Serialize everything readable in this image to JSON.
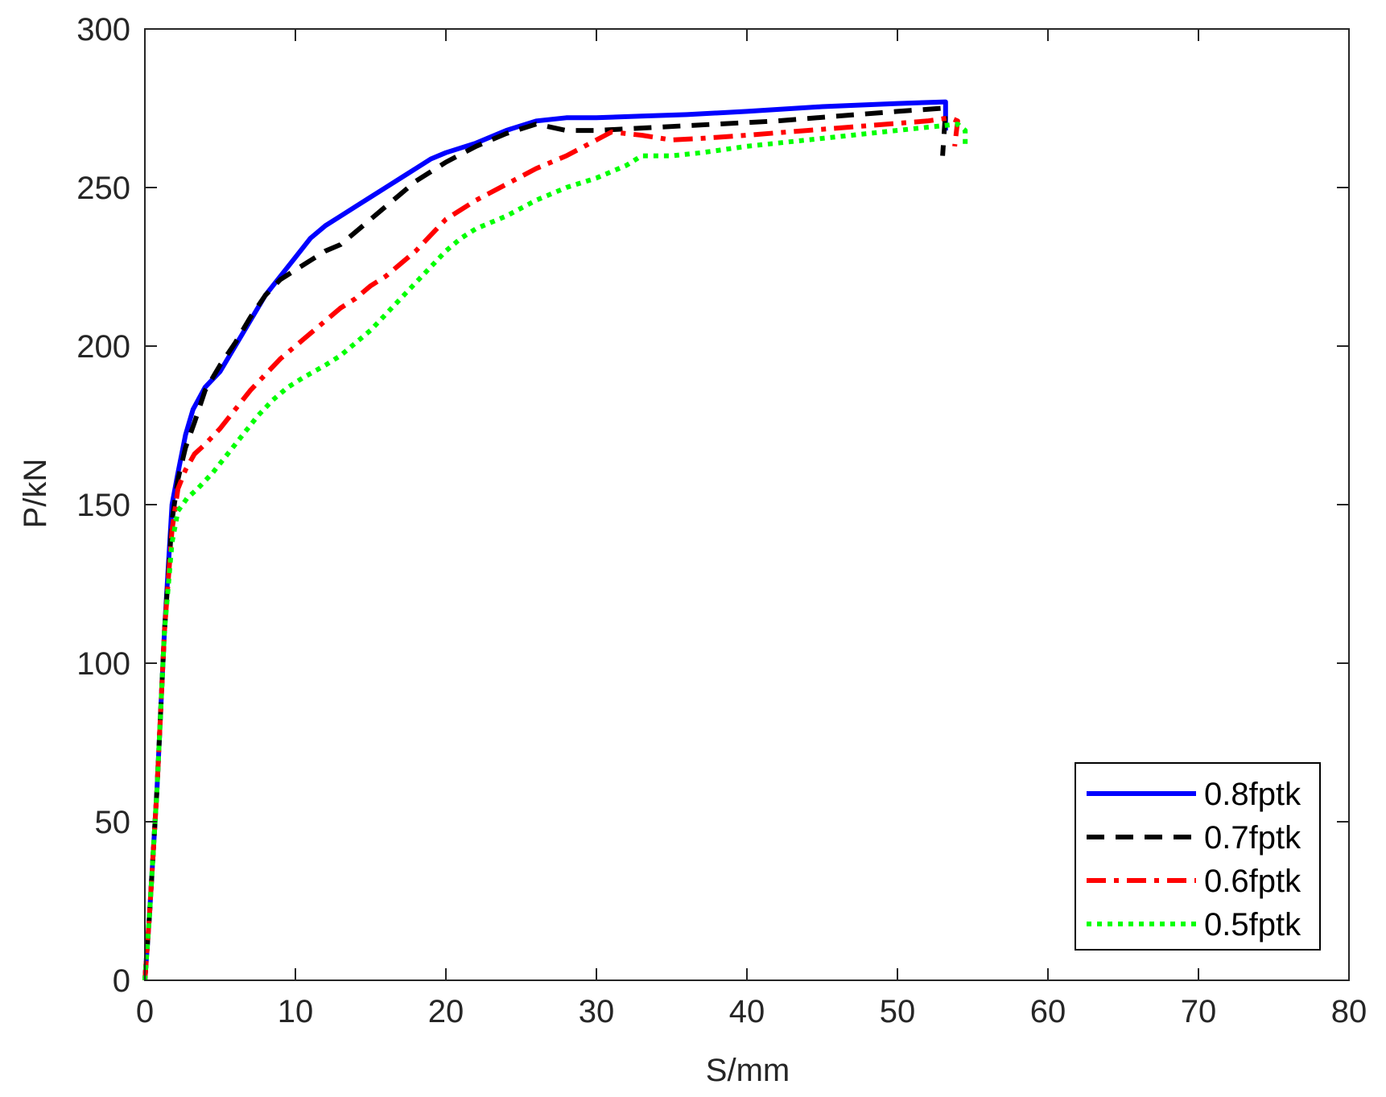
{
  "chart_data": {
    "type": "line",
    "xlabel": "S/mm",
    "ylabel": "P/kN",
    "xlim": [
      0,
      80
    ],
    "ylim": [
      0,
      300
    ],
    "xticks": [
      0,
      10,
      20,
      30,
      40,
      50,
      60,
      70,
      80
    ],
    "yticks": [
      0,
      50,
      100,
      150,
      200,
      250,
      300
    ],
    "xtick_labels": [
      "0",
      "10",
      "20",
      "30",
      "40",
      "50",
      "60",
      "70",
      "80"
    ],
    "ytick_labels": [
      "0",
      "50",
      "100",
      "150",
      "200",
      "250",
      "300"
    ],
    "grid": false,
    "legend_position": "bottom-right",
    "series": [
      {
        "name": "0.8fptk",
        "color": "#0000ff",
        "style": "solid",
        "points": [
          [
            0,
            0
          ],
          [
            0.3,
            20
          ],
          [
            0.8,
            60
          ],
          [
            1.3,
            110
          ],
          [
            1.8,
            150
          ],
          [
            2.2,
            160
          ],
          [
            2.7,
            172
          ],
          [
            3.2,
            180
          ],
          [
            4,
            187
          ],
          [
            5,
            192
          ],
          [
            6,
            200
          ],
          [
            7,
            208
          ],
          [
            8,
            216
          ],
          [
            9,
            222
          ],
          [
            10,
            228
          ],
          [
            11,
            234
          ],
          [
            12,
            238
          ],
          [
            13,
            241
          ],
          [
            14,
            244
          ],
          [
            15,
            247
          ],
          [
            16,
            250
          ],
          [
            17,
            253
          ],
          [
            18,
            256
          ],
          [
            19,
            259
          ],
          [
            20,
            261
          ],
          [
            22,
            264
          ],
          [
            24,
            268
          ],
          [
            26,
            271
          ],
          [
            28,
            272
          ],
          [
            30,
            272
          ],
          [
            33,
            272.5
          ],
          [
            36,
            273
          ],
          [
            40,
            274
          ],
          [
            45,
            275.5
          ],
          [
            50,
            276.5
          ],
          [
            53.2,
            277
          ],
          [
            53.2,
            268
          ]
        ]
      },
      {
        "name": "0.7fptk",
        "color": "#000000",
        "style": "dashed",
        "points": [
          [
            0,
            0
          ],
          [
            0.3,
            20
          ],
          [
            0.8,
            60
          ],
          [
            1.3,
            110
          ],
          [
            1.8,
            145
          ],
          [
            2.2,
            158
          ],
          [
            2.7,
            168
          ],
          [
            3.3,
            176
          ],
          [
            4,
            186
          ],
          [
            5,
            194
          ],
          [
            6,
            201
          ],
          [
            7,
            209
          ],
          [
            8,
            216
          ],
          [
            9,
            221
          ],
          [
            10,
            224
          ],
          [
            11,
            227
          ],
          [
            12,
            230
          ],
          [
            13,
            232
          ],
          [
            14,
            236
          ],
          [
            15,
            240
          ],
          [
            16,
            244
          ],
          [
            17,
            248
          ],
          [
            18,
            252
          ],
          [
            19,
            255
          ],
          [
            20,
            258
          ],
          [
            22,
            263
          ],
          [
            24,
            267
          ],
          [
            26,
            270
          ],
          [
            28,
            268
          ],
          [
            30,
            268
          ],
          [
            34,
            269
          ],
          [
            38,
            270
          ],
          [
            42,
            271
          ],
          [
            46,
            272.5
          ],
          [
            50,
            274
          ],
          [
            53,
            275
          ],
          [
            53.2,
            274
          ],
          [
            53,
            260
          ]
        ]
      },
      {
        "name": "0.6fptk",
        "color": "#ff0000",
        "style": "dashdot",
        "points": [
          [
            0,
            0
          ],
          [
            0.3,
            20
          ],
          [
            0.8,
            60
          ],
          [
            1.3,
            110
          ],
          [
            1.8,
            142
          ],
          [
            2.2,
            155
          ],
          [
            2.7,
            161
          ],
          [
            3.3,
            166
          ],
          [
            4,
            169
          ],
          [
            5,
            174
          ],
          [
            6,
            180
          ],
          [
            7,
            186
          ],
          [
            8,
            191
          ],
          [
            9,
            196
          ],
          [
            10,
            200
          ],
          [
            11,
            204
          ],
          [
            12,
            208
          ],
          [
            13,
            212
          ],
          [
            14,
            215
          ],
          [
            15,
            219
          ],
          [
            16,
            222
          ],
          [
            17,
            226
          ],
          [
            18,
            230
          ],
          [
            19,
            235
          ],
          [
            20,
            240
          ],
          [
            22,
            246
          ],
          [
            24,
            251
          ],
          [
            26,
            256
          ],
          [
            28,
            260
          ],
          [
            30,
            265
          ],
          [
            31,
            267.5
          ],
          [
            33,
            266.5
          ],
          [
            35,
            265
          ],
          [
            37,
            265.5
          ],
          [
            40,
            266.5
          ],
          [
            44,
            268
          ],
          [
            48,
            269.5
          ],
          [
            52,
            271
          ],
          [
            53.5,
            272
          ],
          [
            54,
            271
          ],
          [
            53.8,
            263
          ]
        ]
      },
      {
        "name": "0.5fptk",
        "color": "#00ff00",
        "style": "dotted",
        "points": [
          [
            0,
            0
          ],
          [
            0.3,
            20
          ],
          [
            0.8,
            60
          ],
          [
            1.3,
            110
          ],
          [
            1.8,
            138
          ],
          [
            2.2,
            148
          ],
          [
            2.8,
            152
          ],
          [
            3.5,
            155
          ],
          [
            4.5,
            160
          ],
          [
            5.5,
            166
          ],
          [
            6.5,
            172
          ],
          [
            7.5,
            178
          ],
          [
            8.5,
            183
          ],
          [
            9.5,
            187
          ],
          [
            10.5,
            190
          ],
          [
            12,
            194
          ],
          [
            13,
            197
          ],
          [
            14,
            201
          ],
          [
            15,
            205
          ],
          [
            16,
            210
          ],
          [
            17,
            215
          ],
          [
            18,
            220
          ],
          [
            19,
            225
          ],
          [
            20,
            230
          ],
          [
            21,
            234
          ],
          [
            22,
            237
          ],
          [
            24,
            241
          ],
          [
            26,
            246
          ],
          [
            28,
            250
          ],
          [
            30,
            253
          ],
          [
            32,
            257
          ],
          [
            33,
            260
          ],
          [
            35,
            260
          ],
          [
            37,
            261
          ],
          [
            40,
            263
          ],
          [
            44,
            265
          ],
          [
            48,
            267
          ],
          [
            52,
            269
          ],
          [
            54,
            270
          ],
          [
            54.5,
            268
          ],
          [
            54.5,
            263
          ]
        ]
      }
    ]
  }
}
